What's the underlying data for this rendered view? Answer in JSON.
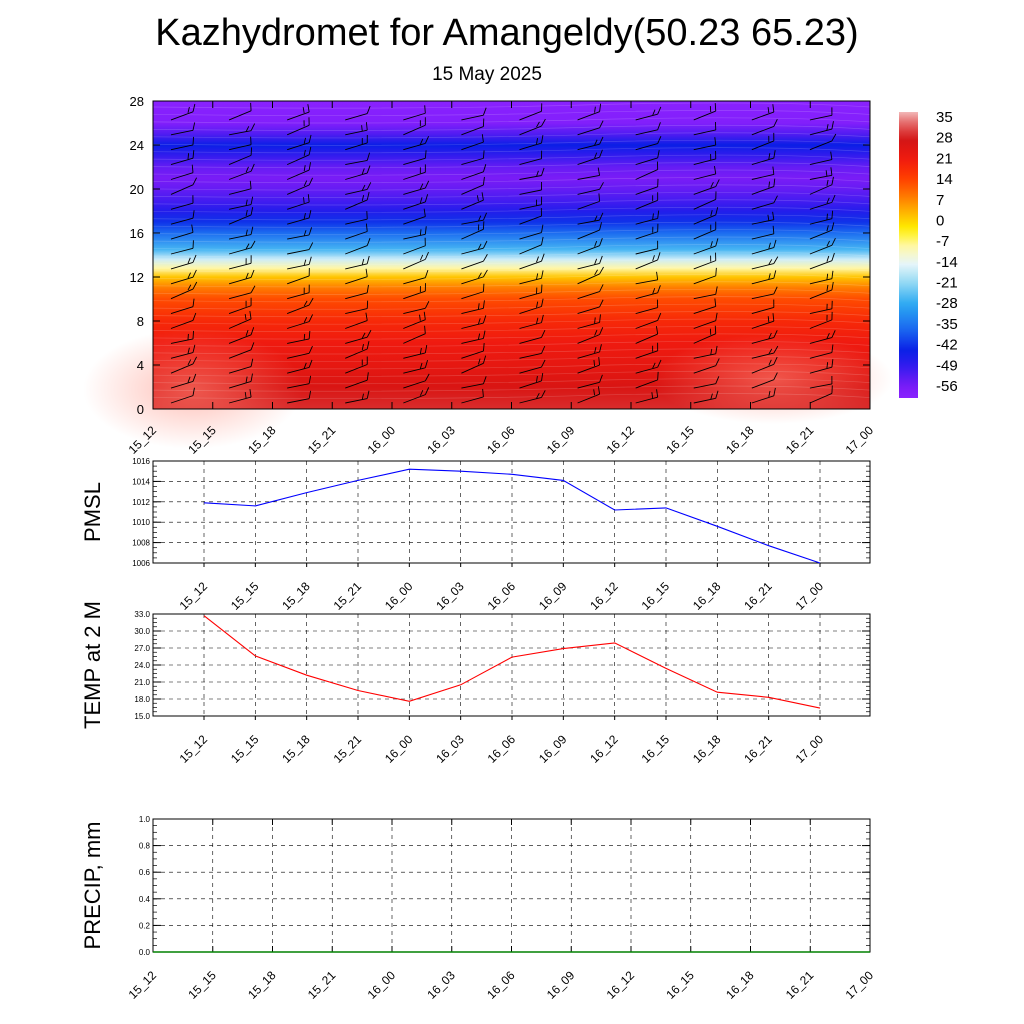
{
  "title": "Kazhydromet for Amangeldy(50.23 65.23)",
  "subtitle": "15 May 2025",
  "time_labels": [
    "15_12",
    "15_15",
    "15_18",
    "15_21",
    "16_00",
    "16_03",
    "16_06",
    "16_09",
    "16_12",
    "16_15",
    "16_18",
    "16_21",
    "17_00"
  ],
  "chart_data": [
    {
      "type": "heatmap",
      "title": "",
      "xlabel": "",
      "ylabel": "",
      "x": [
        "15_12",
        "15_15",
        "15_18",
        "15_21",
        "16_00",
        "16_03",
        "16_06",
        "16_09",
        "16_12",
        "16_15",
        "16_18",
        "16_21",
        "17_00"
      ],
      "y_ticks": [
        0,
        4,
        8,
        12,
        16,
        20,
        24,
        28
      ],
      "ylim": [
        0,
        28
      ],
      "colorbar_labels": [
        "35",
        "28",
        "21",
        "14",
        "7",
        "0",
        "-7",
        "-14",
        "-21",
        "-28",
        "-35",
        "-42",
        "-49",
        "-56"
      ],
      "colorbar_range": [
        -60,
        38
      ],
      "profile_by_level": {
        "levels": [
          0,
          2,
          4,
          6,
          8,
          10,
          11,
          12,
          12.8,
          13.6,
          14.5,
          16,
          17,
          18,
          19,
          20,
          21,
          22,
          23,
          24,
          25,
          26,
          28
        ],
        "values": [
          30,
          27,
          24,
          22,
          19,
          14,
          9,
          2,
          -8,
          -16,
          -26,
          -36,
          -42,
          -47,
          -51,
          -54,
          -56,
          -54,
          -49,
          -44,
          -52,
          -58,
          -60
        ]
      },
      "wind_barbs": true
    },
    {
      "type": "line",
      "ylabel": "PMSL",
      "categories": [
        "15_12",
        "15_15",
        "15_18",
        "15_21",
        "16_00",
        "16_03",
        "16_06",
        "16_09",
        "16_12",
        "16_15",
        "16_18",
        "16_21",
        "17_00"
      ],
      "series": [
        {
          "color": "#0000ff",
          "values": [
            1011.9,
            1011.6,
            1012.9,
            1014.1,
            1015.2,
            1015.0,
            1014.7,
            1014.1,
            1011.2,
            1011.4,
            1009.6,
            1007.7,
            1006.0
          ]
        }
      ],
      "ylim": [
        1006,
        1016
      ],
      "y_ticks": [
        "1016",
        "1014",
        "1012",
        "1010",
        "1008",
        "1006"
      ],
      "grid": true
    },
    {
      "type": "line",
      "ylabel": "TEMP at 2 M",
      "categories": [
        "15_12",
        "15_15",
        "15_18",
        "15_21",
        "16_00",
        "16_03",
        "16_06",
        "16_09",
        "16_12",
        "16_15",
        "16_18",
        "16_21",
        "17_00"
      ],
      "series": [
        {
          "color": "#ff0000",
          "values": [
            32.7,
            25.6,
            22.2,
            19.5,
            17.6,
            20.5,
            25.4,
            26.9,
            27.9,
            23.4,
            19.2,
            18.3,
            16.4
          ]
        }
      ],
      "ylim": [
        15,
        33
      ],
      "y_ticks": [
        "33.0",
        "30.0",
        "27.0",
        "24.0",
        "21.0",
        "18.0",
        "15.0"
      ],
      "grid": true
    },
    {
      "type": "line",
      "ylabel": "PRECIP, mm",
      "categories": [
        "15_12",
        "15_15",
        "15_18",
        "15_21",
        "16_00",
        "16_03",
        "16_06",
        "16_09",
        "16_12",
        "16_15",
        "16_18",
        "16_21",
        "17_00"
      ],
      "series": [
        {
          "color": "#008000",
          "values": [
            0,
            0,
            0,
            0,
            0,
            0,
            0,
            0,
            0,
            0,
            0,
            0,
            0
          ]
        }
      ],
      "ylim": [
        0,
        1
      ],
      "y_ticks": [
        "1.0",
        "0.8",
        "0.6",
        "0.4",
        "0.2",
        "0.0"
      ],
      "grid": true
    }
  ]
}
